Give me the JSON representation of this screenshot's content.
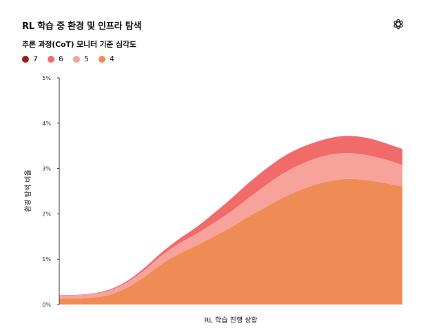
{
  "header": {
    "title": "RL 학습 중 환경 및 인프라 탐색",
    "logo_icon": "openai-logo-icon"
  },
  "chart_data": {
    "type": "area",
    "stacked": true,
    "title": "RL 학습 중 환경 및 인프라 탐색",
    "subtitle": "추론 과정(CoT) 모니터 기준 심각도",
    "xlabel": "RL 학습 진행 상황",
    "ylabel": "환경 탐색 비율",
    "ylim": [
      0,
      5
    ],
    "yticks": [
      "0%",
      "1%",
      "2%",
      "3%",
      "4%",
      "5%"
    ],
    "x": [
      0,
      0.05,
      0.1,
      0.15,
      0.2,
      0.25,
      0.3,
      0.35,
      0.4,
      0.45,
      0.5,
      0.55,
      0.6,
      0.65,
      0.7,
      0.75,
      0.8,
      0.85,
      0.9,
      0.95,
      1.0
    ],
    "legend_position": "top-left",
    "series": [
      {
        "name": "7",
        "color": "#9b1c1c",
        "values": [
          0,
          0,
          0,
          0,
          0,
          0,
          0,
          0,
          0,
          0,
          0,
          0,
          0,
          0,
          0,
          0,
          0,
          0,
          0,
          0,
          0
        ]
      },
      {
        "name": "6",
        "color": "#f26b6b",
        "values": [
          0.005,
          0.005,
          0.01,
          0.02,
          0.03,
          0.05,
          0.07,
          0.1,
          0.15,
          0.21,
          0.28,
          0.33,
          0.36,
          0.37,
          0.37,
          0.36,
          0.37,
          0.38,
          0.38,
          0.36,
          0.35
        ]
      },
      {
        "name": "5",
        "color": "#f7a29a",
        "values": [
          0.08,
          0.08,
          0.09,
          0.1,
          0.12,
          0.15,
          0.19,
          0.23,
          0.26,
          0.3,
          0.35,
          0.41,
          0.48,
          0.53,
          0.56,
          0.58,
          0.58,
          0.57,
          0.55,
          0.52,
          0.48
        ]
      },
      {
        "name": "4",
        "color": "#ef8c55",
        "values": [
          0.13,
          0.13,
          0.15,
          0.22,
          0.38,
          0.62,
          0.9,
          1.12,
          1.3,
          1.5,
          1.7,
          1.93,
          2.14,
          2.35,
          2.52,
          2.65,
          2.74,
          2.77,
          2.74,
          2.68,
          2.6
        ]
      }
    ]
  }
}
